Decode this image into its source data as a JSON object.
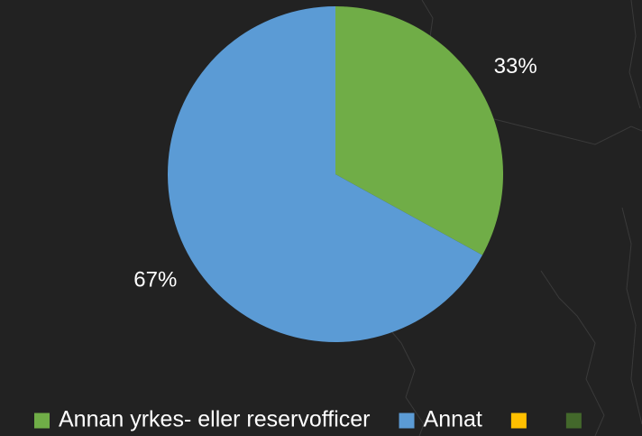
{
  "chart_data": {
    "type": "pie",
    "categories": [
      "Annan yrkes- eller reservofficer",
      "Annat",
      null,
      null
    ],
    "values": [
      33,
      67,
      0,
      0
    ],
    "value_labels": [
      "33%",
      "67%",
      null,
      null
    ],
    "colors": [
      "#70ad47",
      "#5b9bd5",
      "#ffc000",
      "#43682b"
    ],
    "legend": "bottom"
  }
}
